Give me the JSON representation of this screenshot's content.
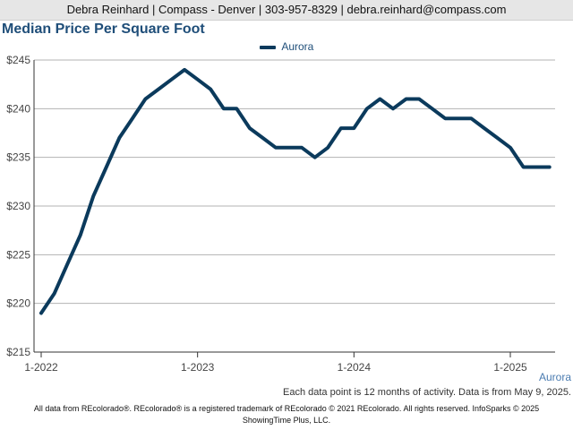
{
  "header": {
    "agent_line": "Debra Reinhard | Compass - Denver | 303-957-8329 | debra.reinhard@compass.com"
  },
  "chart_data": {
    "type": "line",
    "title": "Median Price Per Square Foot",
    "ylim": [
      215,
      245
    ],
    "yticks": [
      215,
      220,
      225,
      230,
      235,
      240,
      245
    ],
    "ytick_labels": [
      "$215",
      "$220",
      "$225",
      "$230",
      "$235",
      "$240",
      "$245"
    ],
    "xticks": [
      "2022-01",
      "2023-01",
      "2024-01",
      "2025-01"
    ],
    "xtick_labels": [
      "1-2022",
      "1-2023",
      "1-2024",
      "1-2025"
    ],
    "grid": true,
    "legend_position": "top-center",
    "series": [
      {
        "name": "Aurora",
        "color": "#0b3a5c",
        "x": [
          "2022-01",
          "2022-02",
          "2022-03",
          "2022-04",
          "2022-05",
          "2022-06",
          "2022-07",
          "2022-08",
          "2022-09",
          "2022-10",
          "2022-11",
          "2022-12",
          "2023-01",
          "2023-02",
          "2023-03",
          "2023-04",
          "2023-05",
          "2023-06",
          "2023-07",
          "2023-08",
          "2023-09",
          "2023-10",
          "2023-11",
          "2023-12",
          "2024-01",
          "2024-02",
          "2024-03",
          "2024-04",
          "2024-05",
          "2024-06",
          "2024-07",
          "2024-08",
          "2024-09",
          "2024-10",
          "2024-11",
          "2024-12",
          "2025-01",
          "2025-02",
          "2025-03",
          "2025-04"
        ],
        "values": [
          219,
          221,
          224,
          227,
          231,
          234,
          237,
          239,
          241,
          242,
          243,
          244,
          243,
          242,
          240,
          240,
          238,
          237,
          236,
          236,
          236,
          235,
          236,
          238,
          238,
          240,
          241,
          240,
          241,
          241,
          240,
          239,
          239,
          239,
          238,
          237,
          236,
          234,
          234,
          234
        ]
      }
    ]
  },
  "series_label": "Aurora",
  "note": "Each data point is 12 months of activity. Data is from May 9, 2025.",
  "footer": {
    "line1": "All data from REcolorado®. REcolorado® is a registered trademark of REcolorado © 2021 REcolorado. All rights reserved. InfoSparks © 2025",
    "line2": "ShowingTime Plus, LLC."
  }
}
